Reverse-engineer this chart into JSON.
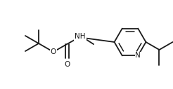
{
  "background": "#ffffff",
  "line_color": "#1a1a1a",
  "line_width": 1.3,
  "font_size": 7.5,
  "figsize": [
    2.46,
    1.27
  ],
  "dpi": 100,
  "xlim": [
    0,
    246
  ],
  "ylim": [
    0,
    127
  ]
}
